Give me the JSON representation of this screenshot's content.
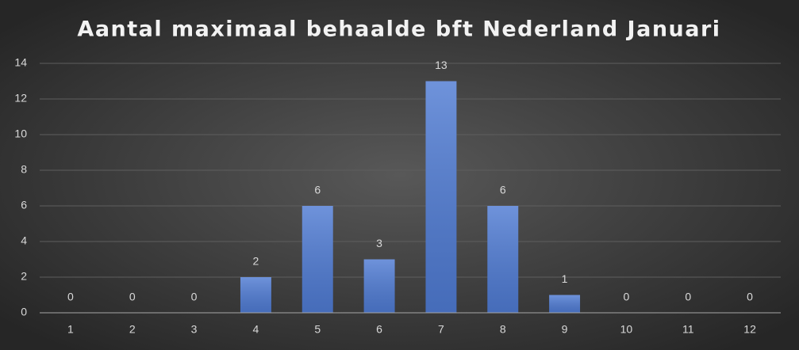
{
  "chart_data": {
    "type": "bar",
    "title": "Aantal maximaal behaalde bft Nederland Januari",
    "categories": [
      "1",
      "2",
      "3",
      "4",
      "5",
      "6",
      "7",
      "8",
      "9",
      "10",
      "11",
      "12"
    ],
    "values": [
      0,
      0,
      0,
      2,
      6,
      3,
      13,
      6,
      1,
      0,
      0,
      0
    ],
    "color": "#4f7bd3",
    "ylim": [
      0,
      14
    ],
    "yticks": [
      0,
      2,
      4,
      6,
      8,
      10,
      12,
      14
    ],
    "grid": true
  }
}
